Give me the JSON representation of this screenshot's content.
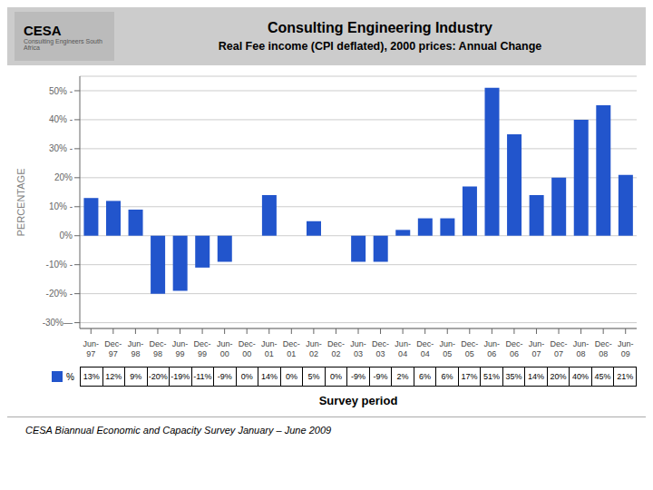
{
  "chart_data": {
    "type": "bar",
    "title": "Consulting Engineering Industry",
    "subtitle": "Real Fee income (CPI deflated), 2000 prices: Annual Change",
    "xlabel": "Survey period",
    "ylabel": "PERCENTAGE",
    "categories": [
      "Jun-\n97",
      "Dec-\n97",
      "Jun-\n98",
      "Dec-\n98",
      "Jun-\n99",
      "Dec-\n99",
      "Jun-\n00",
      "Dec-\n00",
      "Jun-\n01",
      "Dec-\n01",
      "Jun-\n02",
      "Dec-\n02",
      "Jun-\n03",
      "Dec-\n03",
      "Jun-\n04",
      "Dec-\n04",
      "Jun-\n05",
      "Dec-\n05",
      "Jun-\n06",
      "Dec-\n06",
      "Jun-\n07",
      "Dec-\n07",
      "Jun-\n08",
      "Dec-\n08",
      "Jun-\n09"
    ],
    "series": [
      {
        "name": "%",
        "color": "#2255CC",
        "values": [
          13,
          12,
          9,
          -20,
          -19,
          -11,
          -9,
          0,
          14,
          0,
          5,
          0,
          -9,
          -9,
          2,
          6,
          6,
          17,
          51,
          35,
          14,
          20,
          40,
          45,
          21
        ],
        "value_labels": [
          "13%",
          "12%",
          "9%",
          "-20%",
          "-19%",
          "-11%",
          "-9%",
          "0%",
          "14%",
          "0%",
          "5%",
          "0%",
          "-9%",
          "-9%",
          "2%",
          "6%",
          "6%",
          "17%",
          "51%",
          "35%",
          "14%",
          "20%",
          "40%",
          "45%",
          "21%"
        ]
      }
    ],
    "ylim": [
      -32,
      55
    ],
    "yticks": [
      {
        "value": -30,
        "label": "-30%—"
      },
      {
        "value": -20,
        "label": "-20% -"
      },
      {
        "value": -10,
        "label": "-10% -"
      },
      {
        "value": 0,
        "label": "0%"
      },
      {
        "value": 10,
        "label": "10% -"
      },
      {
        "value": 20,
        "label": "20%"
      },
      {
        "value": 30,
        "label": "30% -"
      },
      {
        "value": 40,
        "label": "40% -"
      },
      {
        "value": 50,
        "label": "50% -"
      }
    ],
    "grid": true,
    "data_labels": true,
    "annotations": [
      "CESA",
      "Consulting Engineers South Africa",
      "CESA Biannual Economic and Capacity Survey January – June 2009"
    ]
  }
}
